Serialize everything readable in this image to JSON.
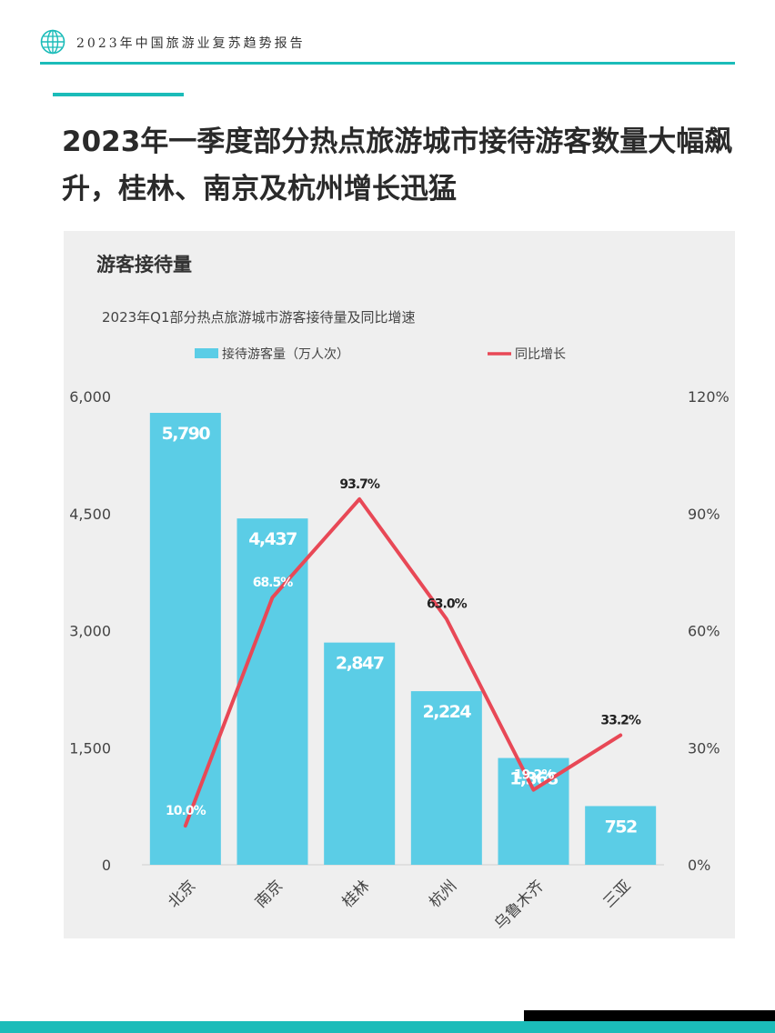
{
  "header": {
    "title": "2023年中国旅游业复苏趋势报告",
    "logo_icon": "globe-icon"
  },
  "headline": {
    "line1": "2023年一季度部分热点旅游城市接待游客数量大幅飙",
    "line2": "升，桂林、南京及杭州增长迅猛"
  },
  "colors": {
    "accent": "#1bbcb9",
    "bar": "#5bcde6",
    "line": "#e84856",
    "panel": "#efefef"
  },
  "chart_data": {
    "type": "bar",
    "panel_label": "游客接待量",
    "title": "2023年Q1部分热点旅游城市游客接待量及同比增速",
    "categories": [
      "北京",
      "南京",
      "桂林",
      "杭州",
      "乌鲁木齐",
      "三亚"
    ],
    "series": [
      {
        "name": "接待游客量（万人次）",
        "type": "bar",
        "axis": "left",
        "values": [
          5790,
          4437,
          2847,
          2224,
          1368,
          752
        ],
        "labels": [
          "5,790",
          "4,437",
          "2,847",
          "2,224",
          "1,368",
          "752"
        ]
      },
      {
        "name": "同比增长",
        "type": "line",
        "axis": "right",
        "values": [
          10.0,
          68.5,
          93.7,
          63.0,
          19.2,
          33.2
        ],
        "labels": [
          "10.0%",
          "68.5%",
          "93.7%",
          "63.0%",
          "19.2%",
          "33.2%"
        ]
      }
    ],
    "y_left": {
      "min": 0,
      "max": 6000,
      "ticks": [
        "0",
        "1,500",
        "3,000",
        "4,500",
        "6,000"
      ]
    },
    "y_right": {
      "min": 0,
      "max": 120,
      "ticks": [
        "0%",
        "30%",
        "60%",
        "90%",
        "120%"
      ]
    },
    "legend_position": "top",
    "grid": false
  }
}
